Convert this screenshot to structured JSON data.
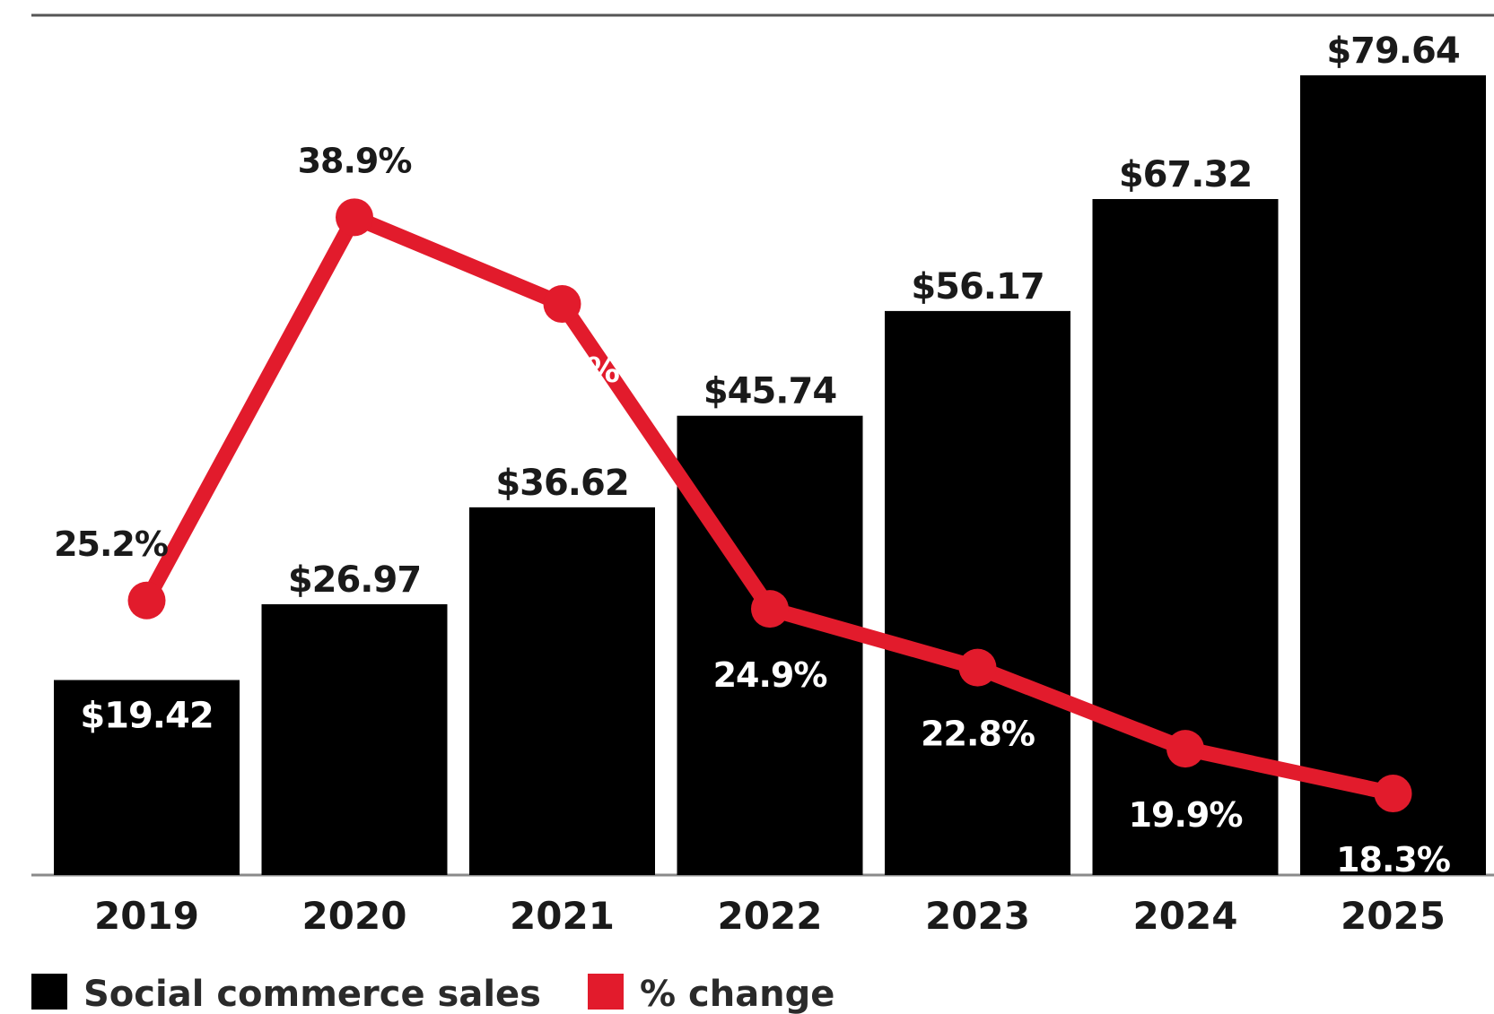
{
  "chart_data": {
    "type": "bar",
    "categories": [
      "2019",
      "2020",
      "2021",
      "2022",
      "2023",
      "2024",
      "2025"
    ],
    "series": [
      {
        "name": "Social commerce sales",
        "type": "bar",
        "values": [
          19.42,
          26.97,
          36.62,
          45.74,
          56.17,
          67.32,
          79.64
        ],
        "labels": [
          "$19.42",
          "$26.97",
          "$36.62",
          "$45.74",
          "$56.17",
          "$67.32",
          "$79.64"
        ],
        "color": "#000000"
      },
      {
        "name": "% change",
        "type": "line",
        "values": [
          25.2,
          38.9,
          35.8,
          24.9,
          22.8,
          19.9,
          18.3
        ],
        "labels": [
          "25.2%",
          "38.9%",
          "35.8%",
          "24.9%",
          "22.8%",
          "19.9%",
          "18.3%"
        ],
        "color": "#e21b2c"
      }
    ],
    "legend": {
      "placement": "bottom-left",
      "items": [
        {
          "label": "Social commerce sales",
          "color": "#000000"
        },
        {
          "label": "% change",
          "color": "#e21b2c"
        }
      ]
    },
    "grid": false
  }
}
